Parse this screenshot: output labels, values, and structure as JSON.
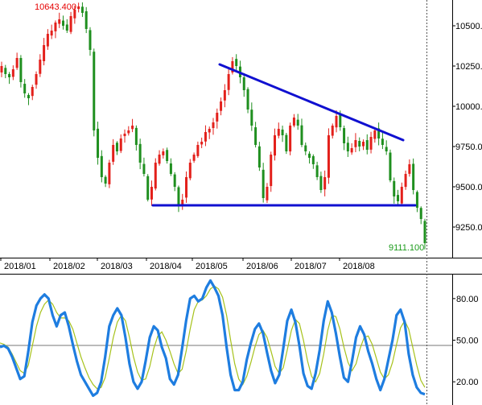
{
  "colors": {
    "up_candle": "#e3201b",
    "down_candle": "#1f8f1f",
    "trendline": "#1010d0",
    "k_line": "#1e7de0",
    "d_line": "#a6c21a",
    "grid_dash": "#555555",
    "axis": "#000000"
  },
  "chart_data": [
    {
      "type": "candlestick",
      "x_tick_labels": [
        "2018/01",
        "2018/02",
        "2018/03",
        "2018/04",
        "2018/05",
        "2018/06",
        "2018/07",
        "2018/08"
      ],
      "y_tick_labels": [
        "10500.0",
        "10250.0",
        "10000.0",
        "9750.00",
        "9500.00",
        "9250.00"
      ],
      "y_ticks": [
        10500,
        10250,
        10000,
        9750,
        9500,
        9250
      ],
      "ylim": [
        9060,
        10660
      ],
      "annotations": {
        "high_label": "10643.400",
        "low_label": "9111.100"
      },
      "max_value": 10643.4,
      "min_value": 9111.1,
      "close": [
        10250,
        10200,
        10180,
        10230,
        10300,
        10150,
        10080,
        10050,
        10120,
        10200,
        10290,
        10380,
        10450,
        10470,
        10520,
        10540,
        10500,
        10470,
        10560,
        10600,
        10620,
        10580,
        10480,
        10350,
        9850,
        9680,
        9560,
        9520,
        9650,
        9760,
        9720,
        9800,
        9830,
        9850,
        9880,
        9760,
        9650,
        9580,
        9420,
        9500,
        9650,
        9700,
        9720,
        9660,
        9580,
        9500,
        9380,
        9420,
        9560,
        9650,
        9700,
        9760,
        9780,
        9840,
        9860,
        9900,
        9960,
        10030,
        10100,
        10200,
        10280,
        10250,
        10180,
        10100,
        9980,
        9880,
        9760,
        9620,
        9430,
        9500,
        9700,
        9820,
        9860,
        9820,
        9720,
        9880,
        9930,
        9880,
        9760,
        9720,
        9680,
        9640,
        9560,
        9480,
        9560,
        9820,
        9880,
        9940,
        9870,
        9770,
        9720,
        9740,
        9790,
        9750,
        9780,
        9730,
        9810,
        9850,
        9800,
        9760,
        9720,
        9540,
        9440,
        9410,
        9500,
        9580,
        9640,
        9480,
        9370,
        9300,
        9150
      ]
    },
    {
      "type": "line",
      "y_tick_labels": [
        "80.00",
        "50.00",
        "20.00"
      ],
      "y_ticks": [
        80,
        50,
        20
      ],
      "reference_line": 50,
      "ylim": [
        5,
        95
      ],
      "x_tick_labels": [],
      "xlabel": "",
      "ylabel": "",
      "series": [
        {
          "values": [
            45,
            46,
            44,
            38,
            30,
            22,
            24,
            42,
            63,
            75,
            80,
            83,
            80,
            68,
            60,
            68,
            70,
            60,
            47,
            35,
            25,
            20,
            15,
            10,
            12,
            20,
            38,
            60,
            68,
            73,
            68,
            52,
            33,
            20,
            15,
            20,
            35,
            52,
            60,
            57,
            45,
            37,
            22,
            18,
            25,
            44,
            64,
            80,
            82,
            78,
            80,
            88,
            93,
            88,
            82,
            68,
            45,
            25,
            14,
            14,
            20,
            36,
            48,
            58,
            62,
            55,
            41,
            28,
            19,
            25,
            44,
            64,
            72,
            63,
            46,
            26,
            17,
            15,
            26,
            43,
            64,
            78,
            70,
            55,
            38,
            23,
            20,
            35,
            52,
            60,
            54,
            42,
            33,
            22,
            14,
            22,
            36,
            50,
            68,
            72,
            63,
            40,
            25,
            16,
            12,
            11
          ]
        },
        {
          "values": [
            48,
            47,
            45,
            40,
            34,
            28,
            26,
            32,
            46,
            60,
            70,
            76,
            79,
            76,
            70,
            66,
            66,
            64,
            58,
            48,
            38,
            30,
            23,
            18,
            15,
            16,
            23,
            37,
            52,
            63,
            68,
            64,
            52,
            38,
            27,
            21,
            22,
            31,
            44,
            53,
            56,
            50,
            42,
            33,
            26,
            29,
            42,
            58,
            72,
            78,
            79,
            82,
            87,
            89,
            87,
            81,
            68,
            50,
            33,
            22,
            18,
            24,
            34,
            45,
            54,
            57,
            52,
            42,
            31,
            26,
            30,
            43,
            57,
            65,
            62,
            50,
            35,
            24,
            20,
            26,
            40,
            57,
            68,
            67,
            58,
            45,
            34,
            28,
            33,
            44,
            52,
            53,
            47,
            37,
            27,
            22,
            25,
            34,
            47,
            59,
            64,
            58,
            45,
            32,
            21,
            16
          ]
        }
      ]
    }
  ]
}
